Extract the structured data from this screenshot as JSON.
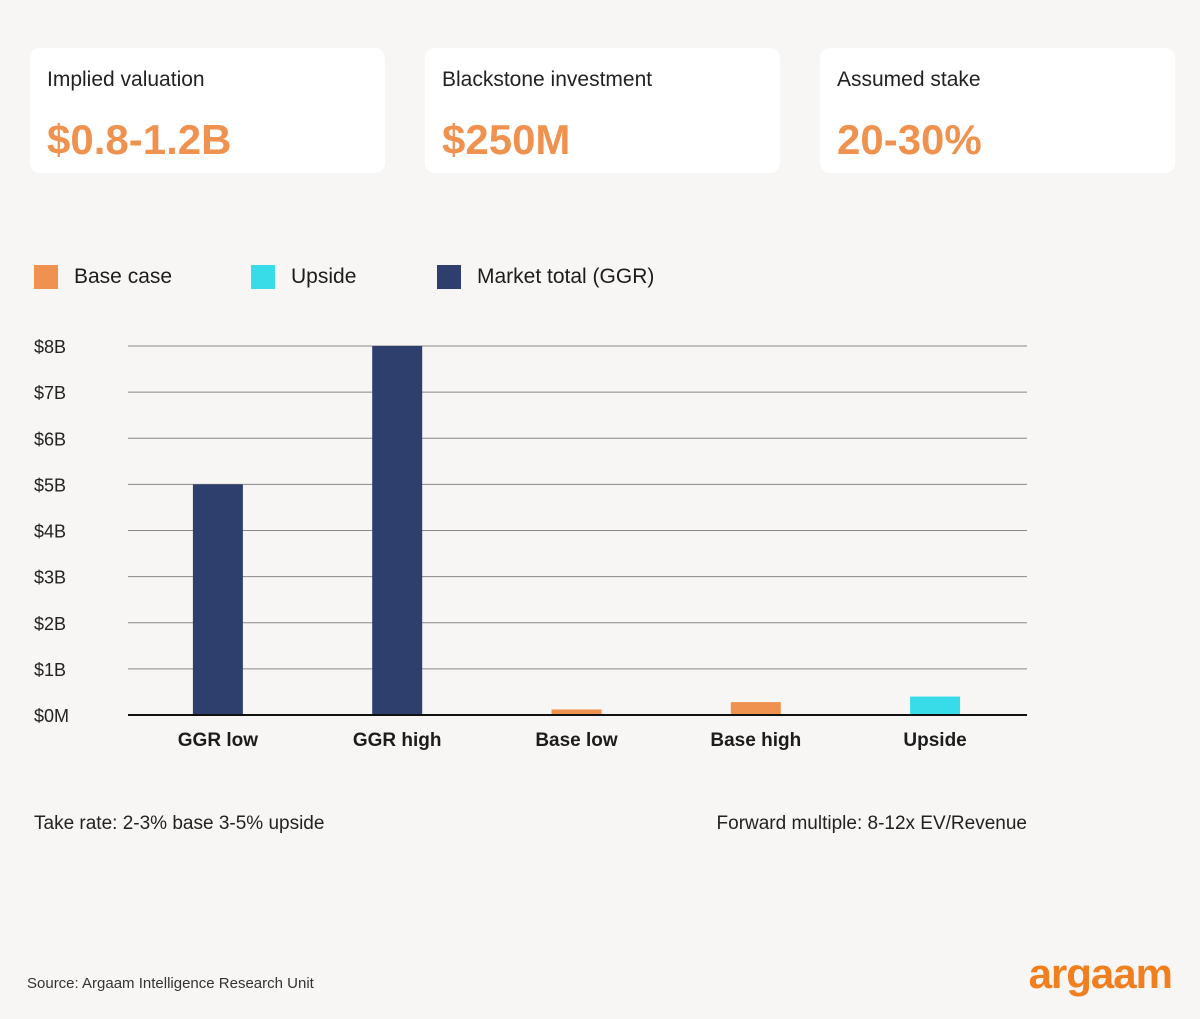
{
  "cards": [
    {
      "label": "Implied valuation",
      "value": "$0.8-1.2B"
    },
    {
      "label": "Blackstone investment",
      "value": "$250M"
    },
    {
      "label": "Assumed stake",
      "value": "20-30%"
    }
  ],
  "legend": [
    {
      "label": "Base case",
      "color": "#f0924f"
    },
    {
      "label": "Upside",
      "color": "#38dce8"
    },
    {
      "label": "Market total (GGR)",
      "color": "#2e3f6e"
    }
  ],
  "chart_data": {
    "type": "bar",
    "categories": [
      "GGR low",
      "GGR high",
      "Base low",
      "Base high",
      "Upside"
    ],
    "values": [
      5.0,
      8.0,
      0.12,
      0.28,
      0.4
    ],
    "series_of_category": [
      "Market total (GGR)",
      "Market total (GGR)",
      "Base case",
      "Base case",
      "Upside"
    ],
    "unit": "$B",
    "ylim": [
      0,
      8
    ],
    "yticks": [
      "$0M",
      "$1B",
      "$2B",
      "$3B",
      "$4B",
      "$5B",
      "$6B",
      "$7B",
      "$8B"
    ],
    "grid": true,
    "legend_position": "top-left"
  },
  "notes": {
    "left": "Take rate: 2-3% base 3-5% upside",
    "right": "Forward multiple: 8-12x EV/Revenue"
  },
  "source": "Source: Argaam Intelligence Research Unit",
  "logo": "argaam"
}
